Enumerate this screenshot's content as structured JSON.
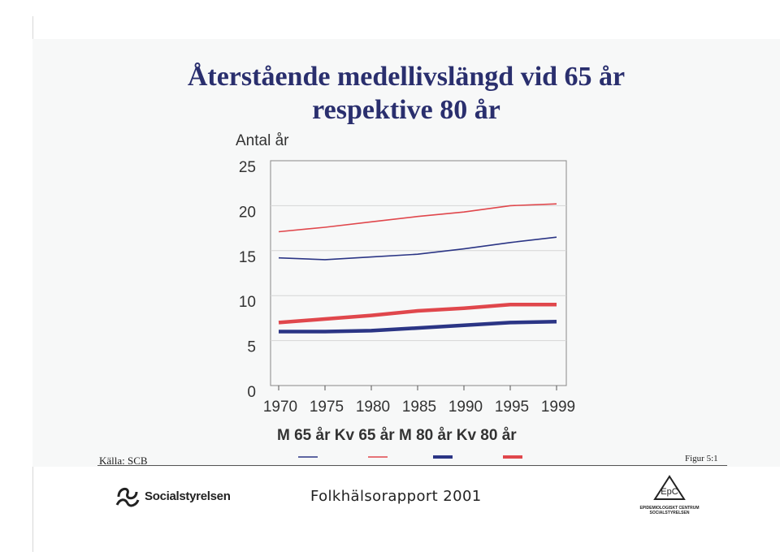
{
  "title_line1": "Återstående medellivslängd vid 65 år",
  "title_line2": "respektive 80 år",
  "footer": {
    "source": "Källa: SCB",
    "figure": "Figur 5:1",
    "publisher": "Socialstyrelsen",
    "report": "Folkhälsorapport 2001",
    "epc_badge": "EpC",
    "epc_line1": "EPIDEMIOLOGISKT CENTRUM",
    "epc_line2": "SOCIALSTYRELSEN"
  },
  "colors": {
    "men": "#2b3585",
    "women": "#e0474c",
    "title": "#2a2f6e"
  },
  "chart_data": {
    "type": "line",
    "title": "Återstående medellivslängd vid 65 år respektive 80 år",
    "ylabel": "Antal år",
    "xlabel": "",
    "ylim": [
      0,
      25
    ],
    "yticks": [
      0,
      5,
      10,
      15,
      20,
      25
    ],
    "categories": [
      "1970",
      "1975",
      "1980",
      "1985",
      "1990",
      "1995",
      "1999"
    ],
    "grid": true,
    "legend_text": "M 65 år Kv 65 år M 80 år Kv 80 år",
    "legend_placement": "bottom",
    "series": [
      {
        "name": "M 65 år",
        "color": "#2b3585",
        "weight": "thin",
        "values": [
          14.2,
          14.0,
          14.3,
          14.6,
          15.2,
          15.9,
          16.5
        ]
      },
      {
        "name": "Kv 65 år",
        "color": "#e0474c",
        "weight": "thin",
        "values": [
          17.1,
          17.6,
          18.2,
          18.8,
          19.3,
          20.0,
          20.2
        ]
      },
      {
        "name": "M 80 år",
        "color": "#2b3585",
        "weight": "thick",
        "values": [
          6.0,
          6.0,
          6.1,
          6.4,
          6.7,
          7.0,
          7.1
        ]
      },
      {
        "name": "Kv 80 år",
        "color": "#e0474c",
        "weight": "thick",
        "values": [
          7.0,
          7.4,
          7.8,
          8.3,
          8.6,
          9.0,
          9.0
        ]
      }
    ]
  }
}
